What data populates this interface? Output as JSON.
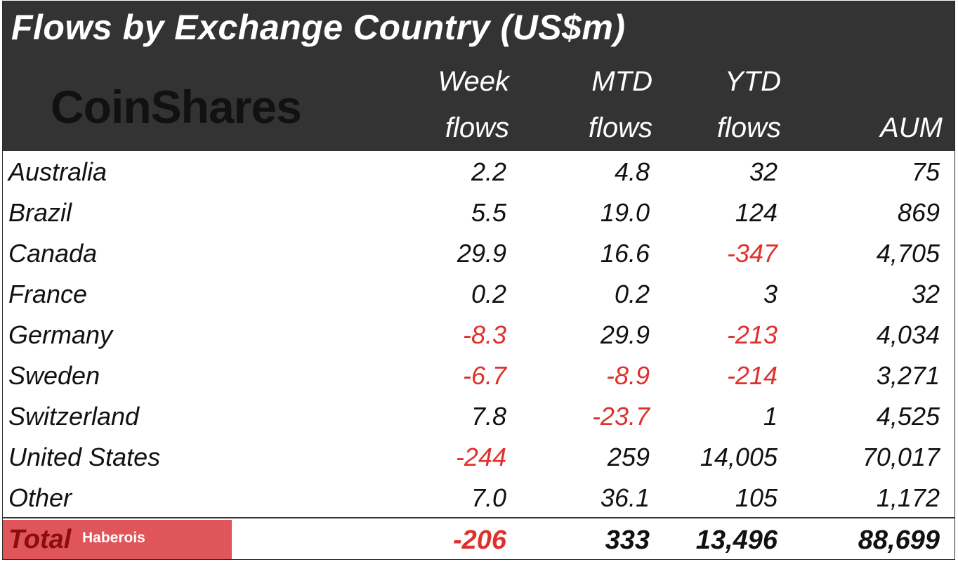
{
  "title": "Flows by Exchange Country (US$m)",
  "logo": "CoinShares",
  "headers": {
    "week": [
      "Week",
      "flows"
    ],
    "mtd": [
      "MTD",
      "flows"
    ],
    "ytd": [
      "YTD",
      "flows"
    ],
    "aum": [
      "",
      "AUM"
    ]
  },
  "colors": {
    "header_bg": "#333333",
    "negative": "#e0302b",
    "watermark_bg": "#e0555a"
  },
  "chart_data": {
    "type": "table",
    "title": "Flows by Exchange Country (US$m)",
    "columns": [
      "Week flows",
      "MTD flows",
      "YTD flows",
      "AUM"
    ],
    "rows": [
      {
        "country": "Australia",
        "week": "2.2",
        "mtd": "4.8",
        "ytd": "32",
        "aum": "75"
      },
      {
        "country": "Brazil",
        "week": "5.5",
        "mtd": "19.0",
        "ytd": "124",
        "aum": "869"
      },
      {
        "country": "Canada",
        "week": "29.9",
        "mtd": "16.6",
        "ytd": "-347",
        "aum": "4,705"
      },
      {
        "country": "France",
        "week": "0.2",
        "mtd": "0.2",
        "ytd": "3",
        "aum": "32"
      },
      {
        "country": "Germany",
        "week": "-8.3",
        "mtd": "29.9",
        "ytd": "-213",
        "aum": "4,034"
      },
      {
        "country": "Sweden",
        "week": "-6.7",
        "mtd": "-8.9",
        "ytd": "-214",
        "aum": "3,271"
      },
      {
        "country": "Switzerland",
        "week": "7.8",
        "mtd": "-23.7",
        "ytd": "1",
        "aum": "4,525"
      },
      {
        "country": "United States",
        "week": "-244",
        "mtd": "259",
        "ytd": "14,005",
        "aum": "70,017"
      },
      {
        "country": "Other",
        "week": "7.0",
        "mtd": "36.1",
        "ytd": "105",
        "aum": "1,172"
      }
    ],
    "total": {
      "label": "Total",
      "week": "-206",
      "mtd": "333",
      "ytd": "13,496",
      "aum": "88,699"
    }
  },
  "watermark": "Haberois"
}
